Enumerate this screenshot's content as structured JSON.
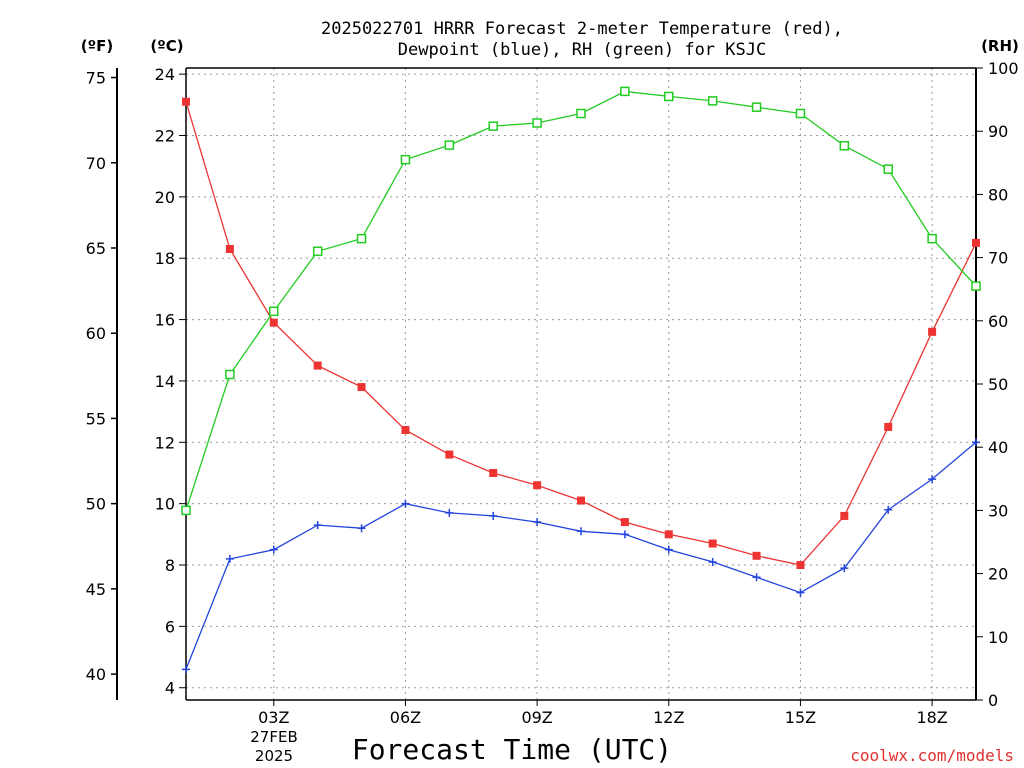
{
  "chart_data": {
    "type": "line",
    "title_line1": "2025022701 HRRR Forecast 2-meter Temperature (red),",
    "title_line2": "Dewpoint (blue), RH (green) for KSJC",
    "xlabel": "Forecast Time (UTC)",
    "watermark": "coolwx.com/models",
    "left_outer_axis_label": "(ºF)",
    "left_inner_axis_label": "(ºC)",
    "right_axis_label": "(RH)",
    "x_hours": [
      1,
      2,
      3,
      4,
      5,
      6,
      7,
      8,
      9,
      10,
      11,
      12,
      13,
      14,
      15,
      16,
      17,
      18,
      19
    ],
    "x_tick_hours": [
      3,
      6,
      9,
      12,
      15,
      18
    ],
    "x_tick_labels": [
      "03Z",
      "06Z",
      "09Z",
      "12Z",
      "15Z",
      "18Z"
    ],
    "x_date_line1": "27FEB",
    "x_date_line2": "2025",
    "xlim": [
      1,
      19
    ],
    "celsius_axis": {
      "ylim": [
        3.6,
        24.2
      ],
      "ticks": [
        4,
        6,
        8,
        10,
        12,
        14,
        16,
        18,
        20,
        22,
        24
      ]
    },
    "fahrenheit_axis": {
      "ticks": [
        40,
        45,
        50,
        55,
        60,
        65,
        70,
        75
      ]
    },
    "rh_axis": {
      "ylim": [
        0,
        100
      ],
      "ticks": [
        0,
        10,
        20,
        30,
        40,
        50,
        60,
        70,
        80,
        90,
        100
      ]
    },
    "grid": true,
    "series": [
      {
        "name": "Temperature",
        "axis": "celsius",
        "color": "#ee3333",
        "marker": "filled-square",
        "values": [
          23.1,
          18.3,
          15.9,
          14.5,
          13.8,
          12.4,
          11.6,
          11.0,
          10.6,
          10.1,
          9.4,
          9.0,
          8.7,
          8.3,
          8.0,
          9.6,
          12.5,
          15.6,
          18.5
        ]
      },
      {
        "name": "Dewpoint",
        "axis": "celsius",
        "color": "#2244dd",
        "marker": "plus",
        "values": [
          4.6,
          8.2,
          8.5,
          9.3,
          9.2,
          10.0,
          9.7,
          9.6,
          9.4,
          9.1,
          9.0,
          8.5,
          8.1,
          7.6,
          7.1,
          7.9,
          9.8,
          10.8,
          12.0
        ]
      },
      {
        "name": "RH",
        "axis": "rh",
        "color": "#22cc22",
        "marker": "open-square",
        "values": [
          30.0,
          51.5,
          61.5,
          71.0,
          73.0,
          85.5,
          87.8,
          90.8,
          91.3,
          92.8,
          96.3,
          95.5,
          94.8,
          93.8,
          92.8,
          87.7,
          84.0,
          73.0,
          65.5
        ]
      }
    ]
  }
}
